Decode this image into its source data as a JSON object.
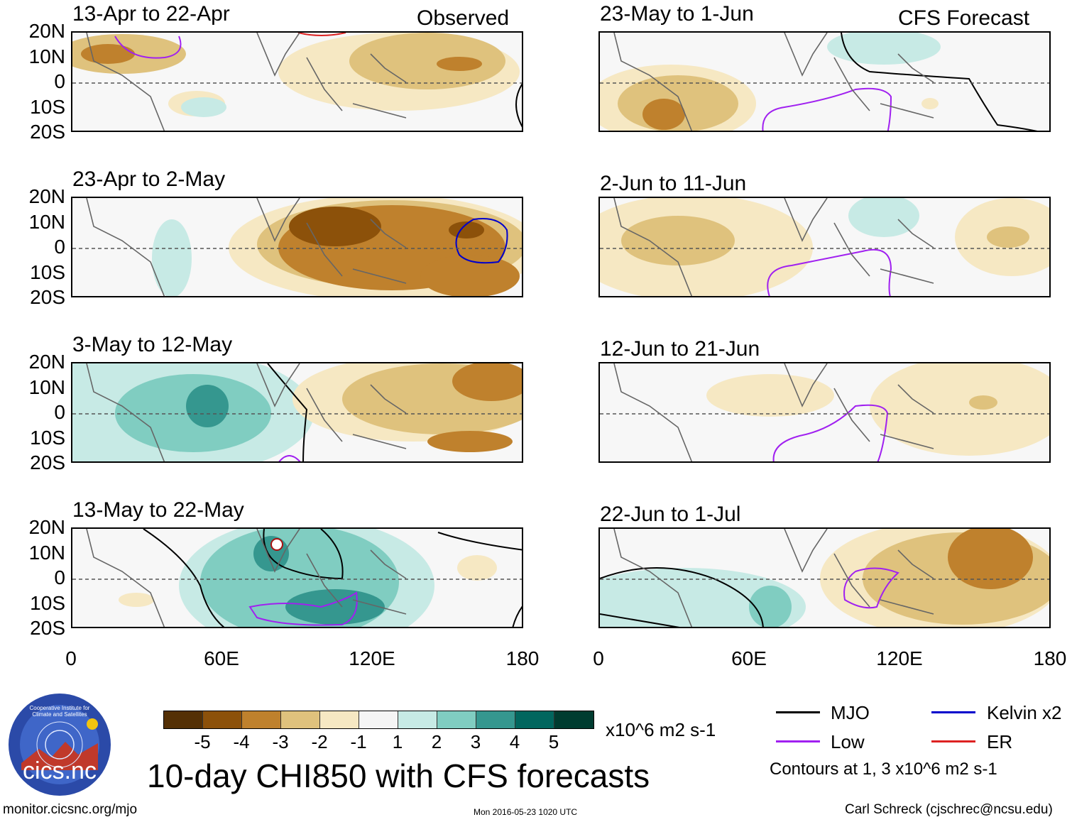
{
  "figure": {
    "title": "10-day CHI850 with CFS forecasts",
    "units": "x10^6 m2 s-1",
    "contour_note": "Contours at 1, 3 x10^6 m2 s-1",
    "observed_label": "Observed",
    "forecast_label": "CFS Forecast"
  },
  "axes": {
    "y_ticks": [
      "20N",
      "10N",
      "0",
      "10S",
      "20S"
    ],
    "x_ticks": [
      "0",
      "60E",
      "120E",
      "180"
    ]
  },
  "panels": [
    {
      "title": "13-Apr to 22-Apr",
      "type": "observed"
    },
    {
      "title": "23-Apr to 2-May",
      "type": "observed"
    },
    {
      "title": "3-May to 12-May",
      "type": "observed"
    },
    {
      "title": "13-May to 22-May",
      "type": "observed"
    },
    {
      "title": "23-May to 1-Jun",
      "type": "forecast"
    },
    {
      "title": "2-Jun to 11-Jun",
      "type": "forecast"
    },
    {
      "title": "12-Jun to 21-Jun",
      "type": "forecast"
    },
    {
      "title": "22-Jun to 1-Jul",
      "type": "forecast"
    }
  ],
  "colorbar": {
    "labels": [
      "-5",
      "-4",
      "-3",
      "-2",
      "-1",
      "1",
      "2",
      "3",
      "4",
      "5"
    ],
    "colors": [
      "#543005",
      "#8c510a",
      "#bf812d",
      "#dfc27d",
      "#f6e8c3",
      "#f5f5f5",
      "#c7eae5",
      "#80cdc1",
      "#35978f",
      "#01665e",
      "#003c30"
    ]
  },
  "legend": {
    "items": [
      {
        "label": "MJO",
        "color": "#000000"
      },
      {
        "label": "Kelvin x2",
        "color": "#0000cc"
      },
      {
        "label": "Low",
        "color": "#a020f0"
      },
      {
        "label": "ER",
        "color": "#dd2222"
      }
    ]
  },
  "logo": {
    "text": "cics.nc",
    "ring_text": "Cooperative Institute for Climate and Satellites"
  },
  "footer": {
    "url": "monitor.cicsnc.org/mjo",
    "timestamp": "Mon 2016-05-23 1020 UTC",
    "author": "Carl Schreck (cjschrec@ncsu.edu)"
  },
  "colors": {
    "brown_dark": "#8c510a",
    "brown": "#bf812d",
    "tan": "#dfc27d",
    "cream": "#f6e8c3",
    "teal_light": "#c7eae5",
    "teal": "#80cdc1",
    "teal_dark": "#35978f"
  }
}
